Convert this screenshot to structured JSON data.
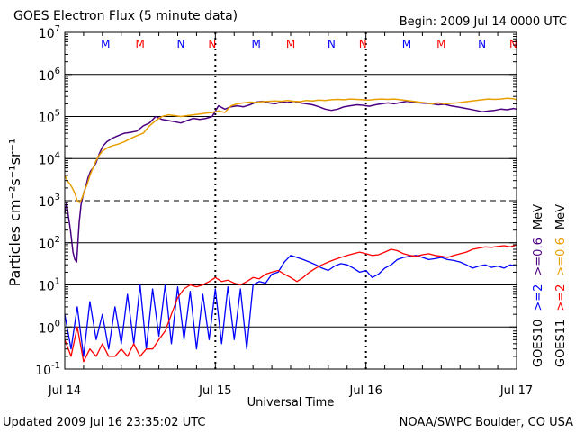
{
  "chart_data": {
    "type": "line",
    "title": "GOES Electron Flux (5 minute data)",
    "begin_label": "Begin: 2009 Jul 14 0000 UTC",
    "xlabel": "Universal Time",
    "ylabel": "Particles cm⁻²s⁻¹sr⁻¹",
    "yscale": "log",
    "ylim": [
      0.1,
      10000000
    ],
    "ytick_base": "10",
    "yticks": [
      {
        "exp": "-1",
        "value": 0.1
      },
      {
        "exp": "0",
        "value": 1
      },
      {
        "exp": "1",
        "value": 10
      },
      {
        "exp": "2",
        "value": 100
      },
      {
        "exp": "3",
        "value": 1000
      },
      {
        "exp": "4",
        "value": 10000
      },
      {
        "exp": "5",
        "value": 100000
      },
      {
        "exp": "6",
        "value": 1000000
      },
      {
        "exp": "7",
        "value": 10000000
      }
    ],
    "xlim": [
      0,
      72
    ],
    "x_unit": "hours since 2009 Jul 14 0000 UTC",
    "xticks": [
      {
        "label": "Jul 14",
        "hour": 0
      },
      {
        "label": "Jul 15",
        "hour": 24
      },
      {
        "label": "Jul 16",
        "hour": 48
      },
      {
        "label": "Jul 17",
        "hour": 72
      }
    ],
    "top_markers": [
      {
        "text": "M",
        "hour": 6.5,
        "color": "#0000ff"
      },
      {
        "text": "M",
        "hour": 12,
        "color": "#ff0000"
      },
      {
        "text": "N",
        "hour": 18.5,
        "color": "#0000ff"
      },
      {
        "text": "N",
        "hour": 23.5,
        "color": "#ff0000"
      },
      {
        "text": "M",
        "hour": 30.5,
        "color": "#0000ff"
      },
      {
        "text": "M",
        "hour": 36,
        "color": "#ff0000"
      },
      {
        "text": "N",
        "hour": 42.5,
        "color": "#0000ff"
      },
      {
        "text": "N",
        "hour": 47.5,
        "color": "#ff0000"
      },
      {
        "text": "M",
        "hour": 54.5,
        "color": "#0000ff"
      },
      {
        "text": "M",
        "hour": 60,
        "color": "#ff0000"
      },
      {
        "text": "N",
        "hour": 66.5,
        "color": "#0000ff"
      },
      {
        "text": "N",
        "hour": 71.5,
        "color": "#ff0000"
      }
    ],
    "dashed_gridline_values": [
      1000
    ],
    "solid_gridline_values": [
      1,
      10,
      100,
      10000,
      100000,
      1000000
    ],
    "series": [
      {
        "name": "GOES10 >=0.6 MeV",
        "color": "#4b0082",
        "x": [
          0,
          0.3,
          0.6,
          0.9,
          1.3,
          1.6,
          1.9,
          2.3,
          2.6,
          3.0,
          3.3,
          3.7,
          4.1,
          4.5,
          5.0,
          5.5,
          6.1,
          6.7,
          7.5,
          8.5,
          9.5,
          10.5,
          11.5,
          12.5,
          13.5,
          14.5,
          15.5,
          16.5,
          17.5,
          18.5,
          19.5,
          20.5,
          21.5,
          22.5,
          23.5,
          24.5,
          25.5,
          26.5,
          27.5,
          28.5,
          29.5,
          30.5,
          31.5,
          32.5,
          33.5,
          34.5,
          35.5,
          36.5,
          37.5,
          38.5,
          39.5,
          40.5,
          41.5,
          42.5,
          43.5,
          44.5,
          45.5,
          46.5,
          47.5,
          48.5,
          49.5,
          50.5,
          51.5,
          52.5,
          53.5,
          54.5,
          55.5,
          56.5,
          57.5,
          58.5,
          59.5,
          60.5,
          61.5,
          62.5,
          63.5,
          64.5,
          65.5,
          66.5,
          67.5,
          68.5,
          69.5,
          70.5,
          71.5,
          72
        ],
        "values": [
          500,
          900,
          400,
          200,
          60,
          40,
          35,
          300,
          800,
          1500,
          2000,
          3500,
          5000,
          6000,
          8000,
          13000,
          20000,
          25000,
          30000,
          35000,
          40000,
          42000,
          45000,
          60000,
          70000,
          100000,
          85000,
          80000,
          75000,
          70000,
          80000,
          90000,
          85000,
          90000,
          100000,
          180000,
          150000,
          170000,
          180000,
          170000,
          190000,
          220000,
          230000,
          210000,
          200000,
          220000,
          215000,
          230000,
          210000,
          200000,
          190000,
          170000,
          150000,
          140000,
          150000,
          170000,
          180000,
          190000,
          185000,
          175000,
          190000,
          200000,
          210000,
          200000,
          215000,
          230000,
          220000,
          210000,
          205000,
          200000,
          190000,
          195000,
          180000,
          170000,
          160000,
          150000,
          140000,
          130000,
          135000,
          140000,
          150000,
          145000,
          155000,
          150000
        ]
      },
      {
        "name": "GOES11 >=0.6 MeV",
        "color": "#e8a000",
        "x": [
          0,
          0.4,
          0.8,
          1.2,
          1.6,
          2.0,
          2.4,
          2.8,
          3.2,
          3.6,
          4.0,
          4.5,
          5.0,
          5.5,
          6.0,
          6.8,
          7.5,
          8.5,
          9.5,
          10.5,
          11.5,
          12.5,
          13.5,
          14.5,
          15.5,
          16.5,
          17.5,
          18.5,
          19.5,
          20.5,
          21.5,
          22.5,
          23.5,
          24.5,
          25.5,
          26.5,
          27.5,
          28.5,
          29.5,
          30.5,
          31.5,
          32.5,
          33.5,
          34.5,
          35.5,
          36.5,
          37.5,
          38.5,
          39.5,
          40.5,
          41.5,
          42.5,
          43.5,
          44.5,
          45.5,
          46.5,
          47.5,
          48.5,
          49.5,
          50.5,
          51.5,
          52.5,
          53.5,
          54.5,
          55.5,
          56.5,
          57.5,
          58.5,
          59.5,
          60.5,
          61.5,
          62.5,
          63.5,
          64.5,
          65.5,
          66.5,
          67.5,
          68.5,
          69.5,
          70.5,
          71.5,
          72
        ],
        "values": [
          4000,
          3000,
          2500,
          2000,
          1500,
          1000,
          900,
          1200,
          1800,
          2500,
          4000,
          6000,
          9000,
          12000,
          15000,
          18000,
          20000,
          22000,
          25000,
          30000,
          35000,
          40000,
          60000,
          80000,
          100000,
          110000,
          105000,
          100000,
          105000,
          110000,
          115000,
          120000,
          125000,
          135000,
          125000,
          180000,
          200000,
          210000,
          220000,
          215000,
          225000,
          230000,
          235000,
          230000,
          240000,
          230000,
          225000,
          240000,
          235000,
          245000,
          240000,
          250000,
          255000,
          250000,
          260000,
          255000,
          250000,
          245000,
          255000,
          260000,
          255000,
          260000,
          250000,
          240000,
          230000,
          220000,
          210000,
          200000,
          210000,
          200000,
          205000,
          210000,
          220000,
          230000,
          240000,
          250000,
          260000,
          255000,
          260000,
          270000,
          265000,
          250000
        ]
      },
      {
        "name": "GOES10 >=2 MeV",
        "color": "#0000ff",
        "x": [
          0,
          1,
          2,
          3,
          4,
          5,
          6,
          7,
          8,
          9,
          10,
          11,
          12,
          13,
          14,
          15,
          16,
          17,
          18,
          19,
          20,
          21,
          22,
          23,
          24,
          25,
          26,
          27,
          28,
          29,
          30,
          31,
          32,
          33,
          34,
          35,
          36,
          37,
          38,
          39,
          40,
          41,
          42,
          43,
          44,
          45,
          46,
          47,
          48,
          49,
          50,
          51,
          52,
          53,
          54,
          55,
          56,
          57,
          58,
          59,
          60,
          61,
          62,
          63,
          64,
          65,
          66,
          67,
          68,
          69,
          70,
          71,
          72
        ],
        "values": [
          2,
          0.3,
          3,
          0.2,
          4,
          0.5,
          2,
          0.3,
          3,
          0.4,
          6,
          0.4,
          10,
          0.3,
          8,
          0.6,
          10,
          0.4,
          9,
          0.5,
          7,
          0.3,
          6,
          0.5,
          8,
          0.4,
          9,
          0.5,
          8,
          0.3,
          10,
          12,
          11,
          18,
          20,
          35,
          50,
          45,
          40,
          35,
          30,
          25,
          22,
          28,
          32,
          30,
          25,
          20,
          22,
          15,
          18,
          25,
          30,
          40,
          45,
          48,
          50,
          45,
          40,
          42,
          45,
          40,
          38,
          35,
          30,
          25,
          28,
          30,
          26,
          28,
          25,
          30,
          28
        ]
      },
      {
        "name": "GOES11 >=2 MeV",
        "color": "#ff0000",
        "x": [
          0,
          1,
          2,
          3,
          4,
          5,
          6,
          7,
          8,
          9,
          10,
          11,
          12,
          13,
          14,
          15,
          16,
          17,
          18,
          19,
          20,
          21,
          22,
          23,
          24,
          25,
          26,
          27,
          28,
          29,
          30,
          31,
          32,
          33,
          34,
          35,
          36,
          37,
          38,
          39,
          40,
          41,
          42,
          43,
          44,
          45,
          46,
          47,
          48,
          49,
          50,
          51,
          52,
          53,
          54,
          55,
          56,
          57,
          58,
          59,
          60,
          61,
          62,
          63,
          64,
          65,
          66,
          67,
          68,
          69,
          70,
          71,
          72
        ],
        "values": [
          0.5,
          0.2,
          1,
          0.15,
          0.3,
          0.2,
          0.4,
          0.2,
          0.2,
          0.3,
          0.2,
          0.4,
          0.2,
          0.3,
          0.3,
          0.5,
          0.8,
          2,
          5,
          8,
          10,
          9,
          10,
          12,
          15,
          12,
          13,
          11,
          10,
          12,
          15,
          14,
          18,
          20,
          22,
          18,
          15,
          12,
          15,
          20,
          25,
          30,
          35,
          40,
          45,
          50,
          55,
          60,
          55,
          50,
          52,
          60,
          70,
          65,
          55,
          50,
          48,
          52,
          55,
          50,
          48,
          45,
          50,
          55,
          60,
          70,
          75,
          80,
          78,
          82,
          85,
          80,
          90
        ]
      }
    ],
    "legend": [
      {
        "text": "GOES10",
        "line1": ">=2",
        "line2": ">=0.6",
        "line1_color": "#0000ff",
        "line2_color": "#4b0082"
      },
      {
        "text": "GOES11",
        "line1": ">=2",
        "line2": ">=0.6",
        "line1_color": "#ff0000",
        "line2_color": "#e8a000"
      }
    ],
    "legend_unit": "MeV"
  },
  "footer": {
    "updated": "Updated 2009 Jul 16 23:35:02 UTC",
    "source": "NOAA/SWPC Boulder, CO USA"
  }
}
